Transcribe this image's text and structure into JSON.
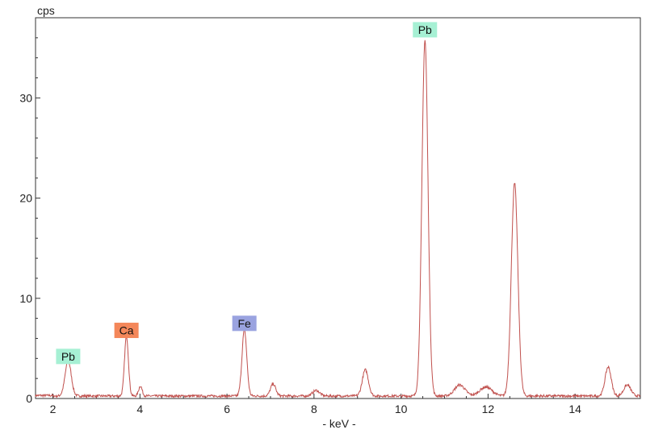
{
  "chart_data": {
    "type": "line",
    "xlabel": "- keV -",
    "ylabel": "cps",
    "xlim": [
      1.6,
      15.5
    ],
    "ylim": [
      0,
      38
    ],
    "x_ticks": [
      2,
      4,
      6,
      8,
      10,
      12,
      14
    ],
    "y_ticks": [
      0,
      10,
      20,
      30
    ],
    "grid": false,
    "line_color": "#c0504d",
    "baseline": 0.25,
    "peaks": [
      {
        "x": 2.35,
        "y": 3.5,
        "w": 0.07
      },
      {
        "x": 3.69,
        "y": 6.0,
        "w": 0.045
      },
      {
        "x": 4.01,
        "y": 1.0,
        "w": 0.04
      },
      {
        "x": 6.4,
        "y": 6.6,
        "w": 0.055
      },
      {
        "x": 7.06,
        "y": 1.2,
        "w": 0.06
      },
      {
        "x": 8.05,
        "y": 0.55,
        "w": 0.08
      },
      {
        "x": 9.18,
        "y": 2.6,
        "w": 0.07
      },
      {
        "x": 10.55,
        "y": 35.5,
        "w": 0.07
      },
      {
        "x": 11.35,
        "y": 1.1,
        "w": 0.12
      },
      {
        "x": 11.95,
        "y": 0.9,
        "w": 0.14
      },
      {
        "x": 12.61,
        "y": 21.2,
        "w": 0.075
      },
      {
        "x": 14.76,
        "y": 2.9,
        "w": 0.07
      },
      {
        "x": 15.2,
        "y": 1.1,
        "w": 0.08
      }
    ],
    "annotations": [
      {
        "text": "Pb",
        "x": 2.35,
        "y": 4.2,
        "color": "#a6f0d4"
      },
      {
        "text": "Ca",
        "x": 3.69,
        "y": 6.8,
        "color": "#f4875a"
      },
      {
        "text": "Fe",
        "x": 6.4,
        "y": 7.5,
        "color": "#9aa3e0"
      },
      {
        "text": "Pb",
        "x": 10.55,
        "y": 36.8,
        "color": "#a6f0d4"
      }
    ]
  }
}
